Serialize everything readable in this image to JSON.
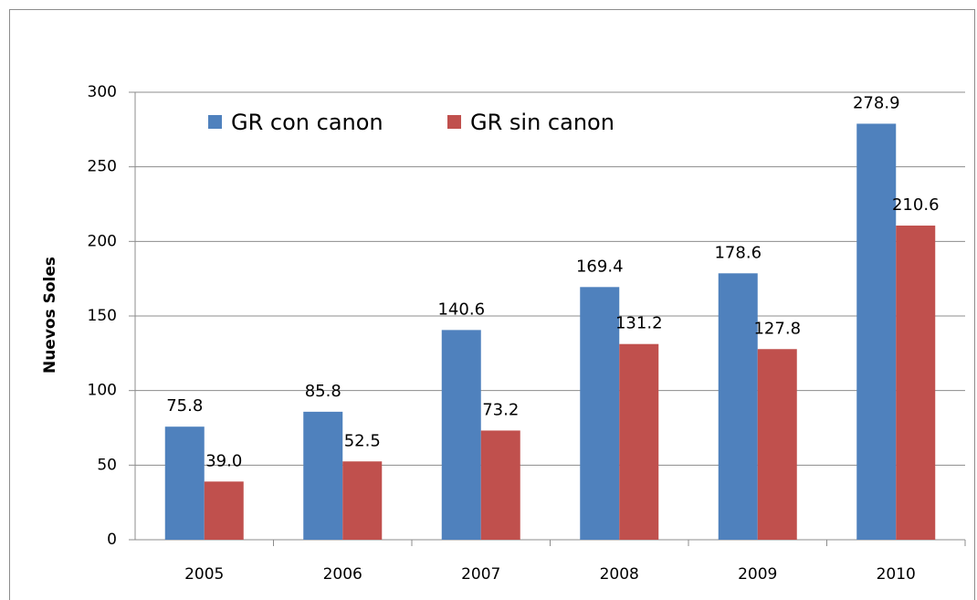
{
  "chart_data": {
    "type": "bar",
    "y_label": "Nuevos Soles",
    "categories": [
      "2005",
      "2006",
      "2007",
      "2008",
      "2009",
      "2010"
    ],
    "series": [
      {
        "name": "GR con canon",
        "color": "#4f81bd",
        "values": [
          75.8,
          85.8,
          140.6,
          169.4,
          178.6,
          278.9
        ],
        "value_labels": [
          "75.8",
          "85.8",
          "140.6",
          "169.4",
          "178.6",
          "278.9"
        ]
      },
      {
        "name": "GR sin canon",
        "color": "#c0504d",
        "values": [
          39.0,
          52.5,
          73.2,
          131.2,
          127.8,
          210.6
        ],
        "value_labels": [
          "39.0",
          "52.5",
          "73.2",
          "131.2",
          "127.8",
          "210.6"
        ]
      }
    ],
    "ylim": [
      0,
      300
    ],
    "yticks": [
      0,
      50,
      100,
      150,
      200,
      250,
      300
    ],
    "grid": true,
    "legend": "top-left"
  }
}
